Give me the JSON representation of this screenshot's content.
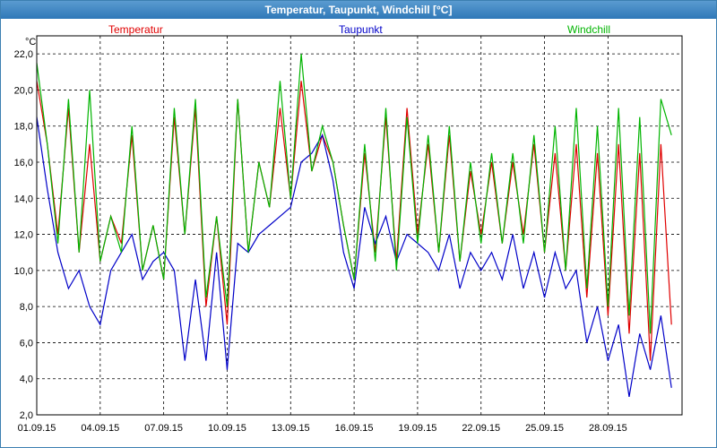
{
  "window": {
    "title": "Temperatur, Taupunkt, Windchill [°C]"
  },
  "chart_data": {
    "type": "line",
    "title": "Temperatur, Taupunkt, Windchill [°C]",
    "ylabel": "°C",
    "xlabel": "",
    "ylim": [
      2.0,
      23.0
    ],
    "xlim": [
      "01.09.15",
      "01.10.15"
    ],
    "grid": true,
    "legend_position": "top",
    "y_ticks": [
      "22,0",
      "20,0",
      "18,0",
      "16,0",
      "14,0",
      "12,0",
      "10,0",
      "8,0",
      "6,0",
      "4,0",
      "2,0"
    ],
    "x_ticks": [
      "01.09.15",
      "04.09.15",
      "07.09.15",
      "10.09.15",
      "13.09.15",
      "16.09.15",
      "19.09.15",
      "22.09.15",
      "25.09.15",
      "28.09.15"
    ],
    "series": [
      {
        "name": "Temperatur",
        "color": "#e00000",
        "x_days": [
          0,
          0.5,
          1,
          1.5,
          2,
          2.5,
          3,
          3.5,
          4,
          4.5,
          5,
          5.5,
          6,
          6.5,
          7,
          7.5,
          8,
          8.5,
          9,
          9.5,
          10,
          10.5,
          11,
          11.5,
          12,
          12.5,
          13,
          13.5,
          14,
          14.5,
          15,
          15.5,
          16,
          16.5,
          17,
          17.5,
          18,
          18.5,
          19,
          19.5,
          20,
          20.5,
          21,
          21.5,
          22,
          22.5,
          23,
          23.5,
          24,
          24.5,
          25,
          25.5,
          26,
          26.5,
          27,
          27.5,
          28,
          28.5,
          29,
          29.5,
          30
        ],
        "values": [
          20.5,
          17.0,
          12.0,
          19.0,
          11.0,
          17.0,
          10.5,
          13.0,
          11.5,
          17.5,
          10.0,
          12.5,
          9.5,
          18.5,
          12.0,
          19.0,
          8.0,
          13.0,
          7.0,
          19.5,
          11.0,
          16.0,
          13.5,
          19.0,
          14.0,
          20.5,
          15.5,
          17.5,
          16.0,
          12.5,
          9.5,
          16.5,
          11.0,
          18.5,
          10.5,
          19.0,
          12.0,
          17.0,
          11.0,
          17.5,
          10.5,
          15.5,
          12.0,
          16.0,
          11.5,
          16.0,
          12.0,
          17.0,
          11.0,
          16.5,
          10.0,
          17.0,
          8.5,
          16.5,
          7.5,
          17.0,
          6.5,
          16.5,
          5.0,
          17.0,
          7.0
        ]
      },
      {
        "name": "Taupunkt",
        "color": "#0000c8",
        "x_days": [
          0,
          0.5,
          1,
          1.5,
          2,
          2.5,
          3,
          3.5,
          4,
          4.5,
          5,
          5.5,
          6,
          6.5,
          7,
          7.5,
          8,
          8.5,
          9,
          9.5,
          10,
          10.5,
          11,
          11.5,
          12,
          12.5,
          13,
          13.5,
          14,
          14.5,
          15,
          15.5,
          16,
          16.5,
          17,
          17.5,
          18,
          18.5,
          19,
          19.5,
          20,
          20.5,
          21,
          21.5,
          22,
          22.5,
          23,
          23.5,
          24,
          24.5,
          25,
          25.5,
          26,
          26.5,
          27,
          27.5,
          28,
          28.5,
          29,
          29.5,
          30
        ],
        "values": [
          18.5,
          14.5,
          11.0,
          9.0,
          10.0,
          8.0,
          7.0,
          10.0,
          11.0,
          12.0,
          9.5,
          10.5,
          11.0,
          10.0,
          5.0,
          9.5,
          5.0,
          11.0,
          4.5,
          11.5,
          11.0,
          12.0,
          12.5,
          13.0,
          13.5,
          16.0,
          16.5,
          17.5,
          15.0,
          11.0,
          9.0,
          13.5,
          11.5,
          13.0,
          10.5,
          12.0,
          11.5,
          11.0,
          10.0,
          12.0,
          9.0,
          11.0,
          10.0,
          11.0,
          9.5,
          12.0,
          9.0,
          11.0,
          8.5,
          11.0,
          9.0,
          10.0,
          6.0,
          8.0,
          5.0,
          7.0,
          3.0,
          6.5,
          4.5,
          7.5,
          3.5
        ]
      },
      {
        "name": "Windchill",
        "color": "#00b400",
        "x_days": [
          0,
          0.5,
          1,
          1.5,
          2,
          2.5,
          3,
          3.5,
          4,
          4.5,
          5,
          5.5,
          6,
          6.5,
          7,
          7.5,
          8,
          8.5,
          9,
          9.5,
          10,
          10.5,
          11,
          11.5,
          12,
          12.5,
          13,
          13.5,
          14,
          14.5,
          15,
          15.5,
          16,
          16.5,
          17,
          17.5,
          18,
          18.5,
          19,
          19.5,
          20,
          20.5,
          21,
          21.5,
          22,
          22.5,
          23,
          23.5,
          24,
          24.5,
          25,
          25.5,
          26,
          26.5,
          27,
          27.5,
          28,
          28.5,
          29,
          29.5,
          30
        ],
        "values": [
          21.5,
          17.0,
          11.5,
          19.5,
          11.0,
          20.0,
          10.5,
          13.0,
          11.0,
          18.0,
          10.0,
          12.5,
          9.5,
          19.0,
          12.0,
          19.5,
          8.5,
          13.0,
          8.0,
          19.5,
          11.0,
          16.0,
          13.5,
          20.5,
          14.0,
          22.0,
          15.5,
          18.0,
          16.0,
          12.5,
          9.5,
          17.0,
          10.5,
          19.0,
          10.0,
          18.5,
          11.5,
          17.5,
          11.0,
          18.0,
          10.5,
          16.0,
          11.5,
          16.5,
          11.5,
          16.5,
          11.5,
          17.5,
          11.0,
          18.0,
          10.0,
          19.0,
          9.0,
          18.0,
          8.0,
          19.0,
          7.5,
          18.5,
          6.5,
          19.5,
          17.5
        ]
      }
    ]
  }
}
